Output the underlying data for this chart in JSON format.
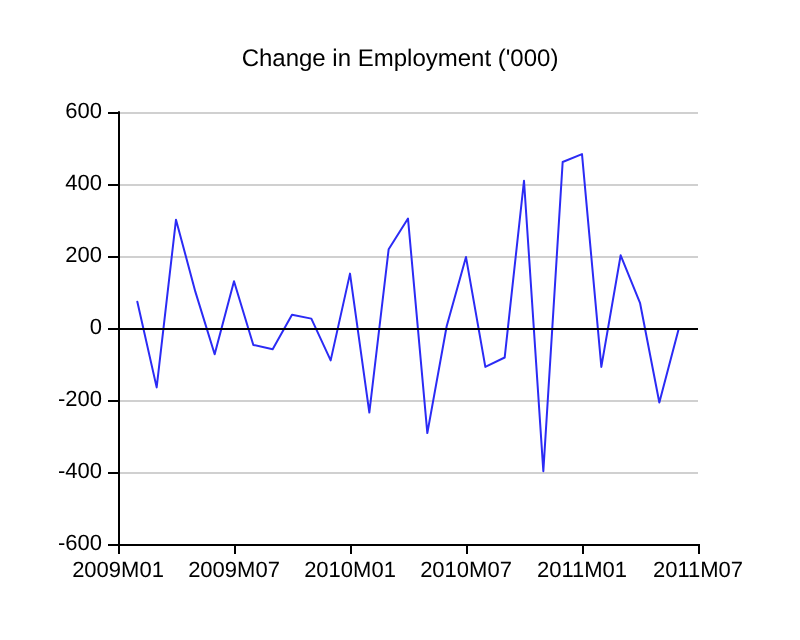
{
  "chart_data": {
    "type": "line",
    "title": "Change in Employment ('000)",
    "categories": [
      "2009M01",
      null,
      null,
      null,
      null,
      null,
      "2009M07",
      null,
      null,
      null,
      null,
      null,
      "2010M01",
      null,
      null,
      null,
      null,
      null,
      "2010M07",
      null,
      null,
      null,
      null,
      null,
      "2011M01",
      null,
      null,
      null,
      null,
      null,
      "2011M07"
    ],
    "series": [
      {
        "color": "#2b2bf5",
        "values": [
          null,
          73,
          -165,
          301,
          101,
          -73,
          130,
          -47,
          -59,
          37,
          26,
          -90,
          151,
          -235,
          219,
          304,
          -292,
          5,
          197,
          -108,
          -82,
          409,
          -398,
          461,
          483,
          -108,
          202,
          70,
          -207,
          -3,
          null
        ]
      }
    ],
    "ylim": [
      -600,
      600
    ],
    "yticks": [
      -600,
      -400,
      -200,
      0,
      200,
      400,
      600
    ],
    "grid": "y",
    "marker": "none",
    "line_style": "solid",
    "ref_lines": [
      {
        "axis": "y",
        "value": 0,
        "color": "#000000"
      }
    ]
  }
}
